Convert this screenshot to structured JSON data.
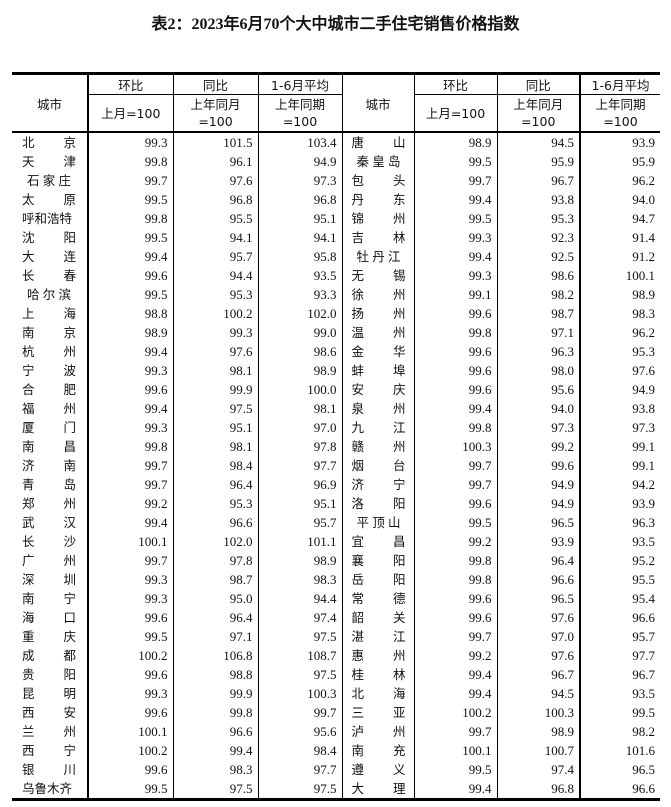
{
  "title": "表2：2023年6月70个大中城市二手住宅销售价格指数",
  "header": {
    "city": "城市",
    "mom": "环比",
    "yoy": "同比",
    "avg": "1-6月平均",
    "mom_base": "上月=100",
    "yoy_base_1": "上年同月",
    "yoy_base_2": "=100",
    "avg_base_1": "上年同期",
    "avg_base_2": "=100"
  },
  "left_rows": [
    [
      "北京",
      "99.3",
      "101.5",
      "103.4"
    ],
    [
      "天津",
      "99.8",
      "96.1",
      "94.9"
    ],
    [
      "石家庄",
      "99.7",
      "97.6",
      "97.3"
    ],
    [
      "太原",
      "99.5",
      "96.8",
      "96.8"
    ],
    [
      "呼和浩特",
      "99.8",
      "95.5",
      "95.1"
    ],
    [
      "沈阳",
      "99.5",
      "94.1",
      "94.1"
    ],
    [
      "大连",
      "99.4",
      "95.7",
      "95.8"
    ],
    [
      "长春",
      "99.6",
      "94.4",
      "93.5"
    ],
    [
      "哈尔滨",
      "99.5",
      "95.3",
      "93.3"
    ],
    [
      "上海",
      "98.8",
      "100.2",
      "102.0"
    ],
    [
      "南京",
      "98.9",
      "99.3",
      "99.0"
    ],
    [
      "杭州",
      "99.4",
      "97.6",
      "98.6"
    ],
    [
      "宁波",
      "99.3",
      "98.1",
      "98.9"
    ],
    [
      "合肥",
      "99.6",
      "99.9",
      "100.0"
    ],
    [
      "福州",
      "99.4",
      "97.5",
      "98.1"
    ],
    [
      "厦门",
      "99.3",
      "95.1",
      "97.0"
    ],
    [
      "南昌",
      "99.8",
      "98.1",
      "97.8"
    ],
    [
      "济南",
      "99.7",
      "98.4",
      "97.7"
    ],
    [
      "青岛",
      "99.7",
      "96.4",
      "96.9"
    ],
    [
      "郑州",
      "99.2",
      "95.3",
      "95.1"
    ],
    [
      "武汉",
      "99.4",
      "96.6",
      "95.7"
    ],
    [
      "长沙",
      "100.1",
      "102.0",
      "101.1"
    ],
    [
      "广州",
      "99.7",
      "97.8",
      "98.9"
    ],
    [
      "深圳",
      "99.3",
      "98.7",
      "98.3"
    ],
    [
      "南宁",
      "99.3",
      "95.0",
      "94.4"
    ],
    [
      "海口",
      "99.6",
      "96.4",
      "97.4"
    ],
    [
      "重庆",
      "99.5",
      "97.1",
      "97.5"
    ],
    [
      "成都",
      "100.2",
      "106.8",
      "108.7"
    ],
    [
      "贵阳",
      "99.6",
      "98.8",
      "97.5"
    ],
    [
      "昆明",
      "99.3",
      "99.9",
      "100.3"
    ],
    [
      "西安",
      "99.6",
      "99.8",
      "99.7"
    ],
    [
      "兰州",
      "100.1",
      "96.6",
      "95.6"
    ],
    [
      "西宁",
      "100.2",
      "99.4",
      "98.4"
    ],
    [
      "银川",
      "99.6",
      "98.3",
      "97.7"
    ],
    [
      "乌鲁木齐",
      "99.5",
      "97.5",
      "97.5"
    ]
  ],
  "right_rows": [
    [
      "唐山",
      "98.9",
      "94.5",
      "93.9"
    ],
    [
      "秦皇岛",
      "99.5",
      "95.9",
      "95.9"
    ],
    [
      "包头",
      "99.7",
      "96.7",
      "96.2"
    ],
    [
      "丹东",
      "99.4",
      "93.8",
      "94.0"
    ],
    [
      "锦州",
      "99.5",
      "95.3",
      "94.7"
    ],
    [
      "吉林",
      "99.3",
      "92.3",
      "91.4"
    ],
    [
      "牡丹江",
      "99.4",
      "92.5",
      "91.2"
    ],
    [
      "无锡",
      "99.3",
      "98.6",
      "100.1"
    ],
    [
      "徐州",
      "99.1",
      "98.2",
      "98.9"
    ],
    [
      "扬州",
      "99.6",
      "98.7",
      "98.3"
    ],
    [
      "温州",
      "99.8",
      "97.1",
      "96.2"
    ],
    [
      "金华",
      "99.6",
      "96.3",
      "95.3"
    ],
    [
      "蚌埠",
      "99.6",
      "98.0",
      "97.6"
    ],
    [
      "安庆",
      "99.6",
      "95.6",
      "94.9"
    ],
    [
      "泉州",
      "99.4",
      "94.0",
      "93.8"
    ],
    [
      "九江",
      "99.8",
      "97.3",
      "97.3"
    ],
    [
      "赣州",
      "100.3",
      "99.2",
      "99.1"
    ],
    [
      "烟台",
      "99.7",
      "99.6",
      "99.1"
    ],
    [
      "济宁",
      "99.7",
      "94.9",
      "94.2"
    ],
    [
      "洛阳",
      "99.6",
      "94.9",
      "93.9"
    ],
    [
      "平顶山",
      "99.5",
      "96.5",
      "96.3"
    ],
    [
      "宜昌",
      "99.2",
      "93.9",
      "93.5"
    ],
    [
      "襄阳",
      "99.8",
      "96.4",
      "95.2"
    ],
    [
      "岳阳",
      "99.8",
      "96.6",
      "95.5"
    ],
    [
      "常德",
      "99.6",
      "96.5",
      "95.4"
    ],
    [
      "韶关",
      "99.6",
      "97.6",
      "96.6"
    ],
    [
      "湛江",
      "99.7",
      "97.0",
      "95.7"
    ],
    [
      "惠州",
      "99.2",
      "97.6",
      "97.7"
    ],
    [
      "桂林",
      "99.4",
      "96.7",
      "96.7"
    ],
    [
      "北海",
      "99.4",
      "94.5",
      "93.5"
    ],
    [
      "三亚",
      "100.2",
      "100.3",
      "99.5"
    ],
    [
      "泸州",
      "99.7",
      "98.9",
      "98.2"
    ],
    [
      "南充",
      "100.1",
      "100.7",
      "101.6"
    ],
    [
      "遵义",
      "99.5",
      "97.4",
      "96.5"
    ],
    [
      "大理",
      "99.4",
      "96.8",
      "96.6"
    ]
  ]
}
